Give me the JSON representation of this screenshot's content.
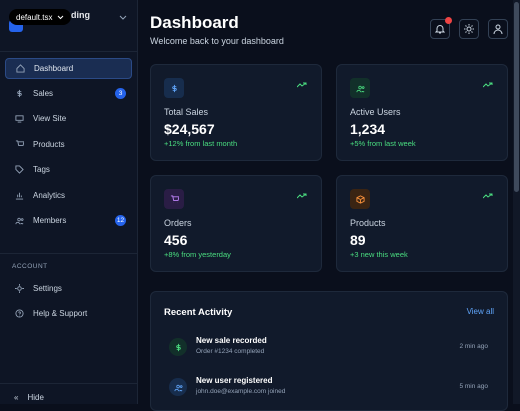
{
  "tab": "default.tsx",
  "sidebar": {
    "brand": "ading",
    "nav": [
      {
        "label": "Dashboard"
      },
      {
        "label": "Sales",
        "badge": 3
      },
      {
        "label": "View Site"
      },
      {
        "label": "Products"
      },
      {
        "label": "Tags"
      },
      {
        "label": "Analytics"
      },
      {
        "label": "Members",
        "badge": 12
      }
    ],
    "section_label": "ACCOUNT",
    "account": [
      {
        "label": "Settings"
      },
      {
        "label": "Help & Support"
      }
    ],
    "hide": "Hide"
  },
  "header": {
    "title": "Dashboard",
    "subtitle": "Welcome back to your dashboard"
  },
  "stats": [
    {
      "label": "Total Sales",
      "value": "$24,567",
      "change": "+12% from last month"
    },
    {
      "label": "Active Users",
      "value": "1,234",
      "change": "+5% from last week"
    },
    {
      "label": "Orders",
      "value": "456",
      "change": "+8% from yesterday"
    },
    {
      "label": "Products",
      "value": "89",
      "change": "+3 new this week"
    }
  ],
  "activity": {
    "title": "Recent Activity",
    "link": "View all",
    "items": [
      {
        "title": "New sale recorded",
        "detail": "Order #1234 completed",
        "time": "2 min ago"
      },
      {
        "title": "New user registered",
        "detail": "john.doe@example.com joined",
        "time": "5 min ago"
      }
    ]
  }
}
